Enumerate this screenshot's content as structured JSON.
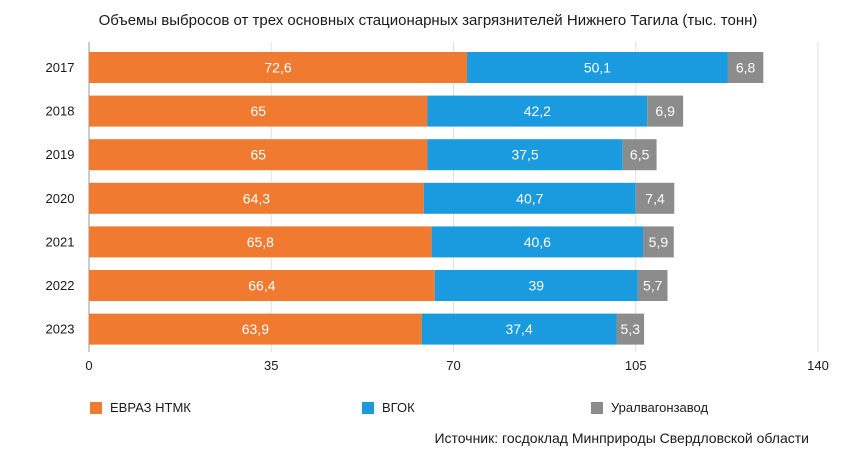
{
  "chart_data": {
    "type": "bar",
    "orientation": "horizontal",
    "stacked": true,
    "title": "Объемы выбросов от трех основных стационарных загрязнителей Нижнего Тагила (тыс. тонн)",
    "categories": [
      "2017",
      "2018",
      "2019",
      "2020",
      "2021",
      "2022",
      "2023"
    ],
    "series": [
      {
        "name": "ЕВРАЗ НТМК",
        "color": "#f07a30",
        "values": [
          72.6,
          65,
          65,
          64.3,
          65.8,
          66.4,
          63.9
        ],
        "labels": [
          "72,6",
          "65",
          "65",
          "64,3",
          "65,8",
          "66,4",
          "63,9"
        ]
      },
      {
        "name": "ВГОК",
        "color": "#1a9be0",
        "values": [
          50.1,
          42.2,
          37.5,
          40.7,
          40.6,
          39,
          37.4
        ],
        "labels": [
          "50,1",
          "42,2",
          "37,5",
          "40,7",
          "40,6",
          "39",
          "37,4"
        ]
      },
      {
        "name": "Уралвагонзавод",
        "color": "#8c8c8c",
        "values": [
          6.8,
          6.9,
          6.5,
          7.4,
          5.9,
          5.7,
          5.3
        ],
        "labels": [
          "6,8",
          "6,9",
          "6,5",
          "7,4",
          "5,9",
          "5,7",
          "5,3"
        ]
      }
    ],
    "xlim": [
      0,
      140
    ],
    "xticks": [
      0,
      35,
      70,
      105,
      140
    ],
    "xlabel": "",
    "ylabel": "",
    "grid": true,
    "legend_position": "bottom"
  },
  "source": "Источник: госдоклад Минприроды Свердловской области"
}
